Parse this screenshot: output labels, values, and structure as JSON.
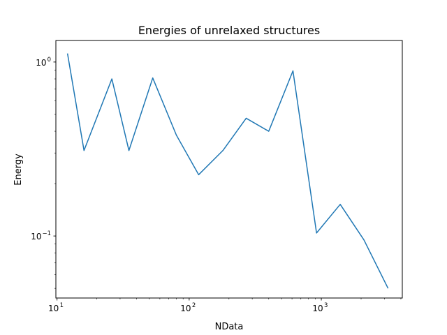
{
  "chart_data": {
    "type": "line",
    "title": "Energies of unrelaxed structures",
    "xlabel": "NData",
    "ylabel": "Energy",
    "xscale": "log",
    "yscale": "log",
    "xlim": [
      9.8,
      4100
    ],
    "ylim": [
      0.044,
      1.33
    ],
    "grid": false,
    "line_color": "#1f77b4",
    "x_ticks": [
      {
        "value": 10,
        "base": "10",
        "exp": "1"
      },
      {
        "value": 100,
        "base": "10",
        "exp": "2"
      },
      {
        "value": 1000,
        "base": "10",
        "exp": "3"
      }
    ],
    "y_ticks": [
      {
        "value": 0.1,
        "base": "10",
        "exp": "−1"
      },
      {
        "value": 1,
        "base": "10",
        "exp": "0"
      }
    ],
    "x": [
      12,
      16,
      26,
      35,
      53,
      80,
      118,
      180,
      270,
      400,
      610,
      920,
      1390,
      2100,
      3200
    ],
    "y": [
      1.12,
      0.31,
      0.8,
      0.31,
      0.81,
      0.38,
      0.225,
      0.31,
      0.475,
      0.4,
      0.89,
      0.104,
      0.152,
      0.095,
      0.05
    ]
  }
}
